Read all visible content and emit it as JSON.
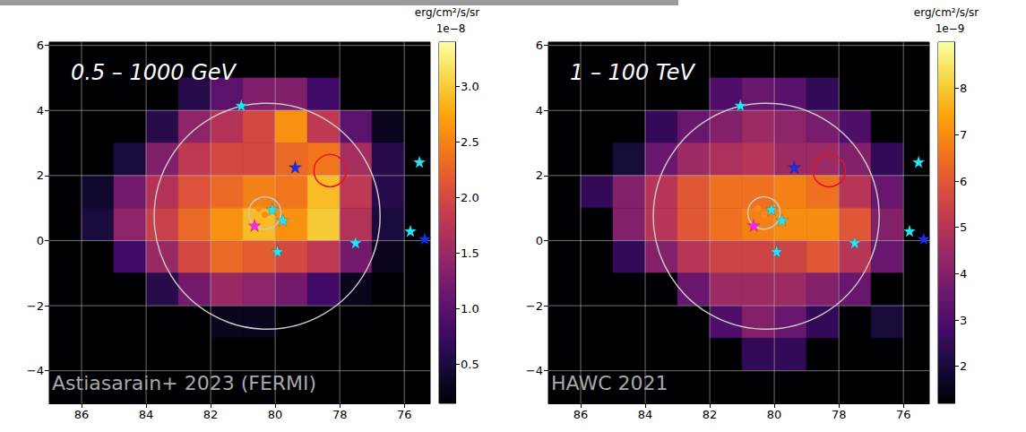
{
  "chart_data": [
    {
      "type": "heatmap",
      "title": "0.5 – 1000 GeV",
      "annotation": "Astiasarain+ 2023 (FERMI)",
      "grid": true,
      "xlim": [
        87,
        75.2
      ],
      "xticks": [
        86,
        84,
        82,
        80,
        78,
        76
      ],
      "ylim": [
        -5,
        6.1
      ],
      "yticks": [
        {
          "value": -4,
          "label": "−4"
        },
        {
          "value": -2,
          "label": "−2"
        },
        0,
        2,
        4,
        6
      ],
      "cells": {
        "x": [
          86.5,
          85.5,
          84.5,
          83.5,
          82.5,
          81.5,
          80.5,
          79.5,
          78.5,
          77.5,
          76.5,
          75.5
        ],
        "y": [
          5.5,
          4.5,
          3.5,
          2.5,
          1.5,
          0.5,
          -0.5,
          -1.5,
          -2.5,
          -3.5,
          -4.5
        ],
        "values": [
          [
            0.15,
            0.15,
            0.15,
            0.15,
            0.15,
            0.15,
            0.15,
            0.15,
            0.15,
            0.15,
            0.15,
            0.15
          ],
          [
            0.15,
            0.15,
            0.15,
            0.15,
            0.6,
            1.0,
            1.3,
            1.3,
            0.8,
            0.15,
            0.15,
            0.15
          ],
          [
            0.15,
            0.15,
            0.15,
            0.6,
            1.4,
            1.7,
            2.0,
            2.6,
            1.8,
            1.0,
            0.3,
            0.15
          ],
          [
            0.15,
            0.15,
            0.5,
            1.3,
            1.8,
            2.0,
            2.0,
            2.3,
            2.4,
            1.6,
            0.6,
            0.15
          ],
          [
            0.15,
            0.4,
            1.2,
            1.7,
            2.1,
            2.3,
            2.5,
            2.4,
            2.9,
            1.8,
            0.6,
            0.15
          ],
          [
            0.15,
            0.5,
            1.4,
            1.9,
            2.3,
            2.6,
            2.9,
            2.6,
            3.0,
            1.7,
            0.5,
            0.15
          ],
          [
            0.15,
            0.15,
            0.8,
            1.5,
            2.0,
            2.3,
            2.2,
            2.0,
            1.8,
            1.2,
            0.3,
            0.15
          ],
          [
            0.15,
            0.15,
            0.15,
            0.6,
            1.2,
            1.5,
            1.4,
            1.2,
            0.8,
            0.3,
            0.15,
            0.15
          ],
          [
            0.15,
            0.15,
            0.15,
            0.15,
            0.15,
            0.3,
            0.3,
            0.15,
            0.15,
            0.15,
            0.15,
            0.15
          ],
          [
            0.15,
            0.15,
            0.15,
            0.15,
            0.15,
            0.15,
            0.15,
            0.15,
            0.15,
            0.15,
            0.15,
            0.15
          ],
          [
            0.15,
            0.15,
            0.15,
            0.15,
            0.15,
            0.15,
            0.15,
            0.15,
            0.15,
            0.15,
            0.15,
            0.15
          ]
        ]
      },
      "colorbar": {
        "label": "erg/cm²/s/sr",
        "multiplier": "1e−8",
        "range": [
          0.15,
          3.4
        ],
        "ticks": [
          0.5,
          {
            "value": 1,
            "label": "1.0"
          },
          1.5,
          {
            "value": 2,
            "label": "2.0"
          },
          2.5,
          {
            "value": 3,
            "label": "3.0"
          }
        ]
      },
      "markers": [
        {
          "marker": "star",
          "color": "#27e3f2",
          "x": [
            81.05,
            80.09,
            79.76,
            79.93,
            77.51,
            75.53,
            75.81
          ],
          "y": [
            4.16,
            0.96,
            0.63,
            -0.33,
            -0.06,
            2.42,
            0.3
          ]
        },
        {
          "marker": "star",
          "color": "#1a2ee8",
          "x": [
            79.38,
            75.37
          ],
          "y": [
            2.26,
            0.06
          ]
        },
        {
          "marker": "star",
          "color": "#ff20f0",
          "x": [
            80.64
          ],
          "y": [
            0.47
          ]
        },
        {
          "marker": "circle",
          "color": "#ff8a1c",
          "x": [
            80.51,
            80.32
          ],
          "y": [
            0.99,
            0.8
          ]
        }
      ],
      "circles": [
        {
          "x": 80.25,
          "y": 0.75,
          "r": 3.5,
          "color": "#c8c8c8"
        },
        {
          "x": 80.32,
          "y": 0.85,
          "r": 0.5,
          "color": "#c8c8c8"
        },
        {
          "x": 78.3,
          "y": 2.15,
          "r": 0.5,
          "color": "#e8141c"
        }
      ]
    },
    {
      "type": "heatmap",
      "title": "1 – 100 TeV",
      "annotation": "HAWC 2021",
      "grid": true,
      "xlim": [
        87,
        75.2
      ],
      "xticks": [
        86,
        84,
        82,
        80,
        78,
        76
      ],
      "ylim": [
        -5,
        6.1
      ],
      "yticks": [
        {
          "value": -4,
          "label": "−4"
        },
        {
          "value": -2,
          "label": "−2"
        },
        0,
        2,
        4,
        6
      ],
      "cells": {
        "x": [
          86.5,
          85.5,
          84.5,
          83.5,
          82.5,
          81.5,
          80.5,
          79.5,
          78.5,
          77.5,
          76.5,
          75.5
        ],
        "y": [
          5.5,
          4.5,
          3.5,
          2.5,
          1.5,
          0.5,
          -0.5,
          -1.5,
          -2.5,
          -3.5,
          -4.5
        ],
        "values": [
          [
            1.2,
            1.2,
            1.2,
            1.2,
            1.2,
            1.2,
            1.2,
            1.2,
            1.2,
            1.2,
            1.2,
            1.2
          ],
          [
            1.2,
            1.2,
            1.2,
            1.2,
            1.2,
            3.0,
            3.5,
            3.2,
            2.5,
            1.2,
            1.2,
            1.2
          ],
          [
            1.2,
            1.2,
            1.2,
            2.5,
            3.5,
            4.0,
            4.5,
            4.2,
            3.8,
            3.0,
            1.2,
            1.2
          ],
          [
            1.2,
            1.2,
            2.0,
            3.5,
            4.5,
            4.8,
            5.0,
            4.5,
            4.5,
            4.0,
            2.5,
            1.2
          ],
          [
            1.2,
            2.5,
            4.0,
            5.0,
            6.0,
            6.5,
            6.5,
            6.8,
            6.5,
            5.0,
            3.5,
            1.2
          ],
          [
            1.2,
            1.2,
            4.0,
            5.0,
            6.0,
            6.5,
            6.8,
            7.0,
            7.0,
            6.0,
            4.0,
            1.2
          ],
          [
            1.2,
            1.2,
            2.5,
            4.0,
            5.0,
            5.5,
            5.5,
            5.5,
            6.0,
            5.0,
            3.5,
            1.2
          ],
          [
            1.2,
            1.2,
            1.2,
            1.2,
            3.5,
            4.5,
            4.5,
            4.5,
            4.0,
            3.5,
            1.2,
            1.2
          ],
          [
            1.2,
            1.2,
            1.2,
            1.2,
            1.2,
            3.0,
            4.0,
            3.5,
            2.5,
            1.2,
            2.0,
            1.2
          ],
          [
            1.2,
            1.2,
            1.2,
            1.2,
            1.2,
            1.2,
            2.5,
            2.5,
            1.2,
            1.2,
            1.2,
            1.2
          ],
          [
            1.2,
            1.2,
            1.2,
            1.2,
            1.2,
            1.2,
            1.2,
            1.2,
            1.2,
            1.2,
            1.2,
            1.2
          ]
        ]
      },
      "colorbar": {
        "label": "erg/cm²/s/sr",
        "multiplier": "1e−9",
        "range": [
          1.2,
          9.0
        ],
        "ticks": [
          2,
          3,
          4,
          5,
          6,
          7,
          8
        ]
      },
      "markers": [
        {
          "marker": "star",
          "color": "#27e3f2",
          "x": [
            81.05,
            80.09,
            79.76,
            79.93,
            77.51,
            75.53,
            75.81
          ],
          "y": [
            4.16,
            0.96,
            0.63,
            -0.33,
            -0.06,
            2.42,
            0.3
          ]
        },
        {
          "marker": "star",
          "color": "#1a2ee8",
          "x": [
            79.38,
            75.37
          ],
          "y": [
            2.26,
            0.06
          ]
        },
        {
          "marker": "star",
          "color": "#ff20f0",
          "x": [
            80.64
          ],
          "y": [
            0.47
          ]
        },
        {
          "marker": "circle",
          "color": "#ff8a1c",
          "x": [
            80.51,
            80.32
          ],
          "y": [
            0.99,
            0.8
          ]
        }
      ],
      "circles": [
        {
          "x": 80.25,
          "y": 0.75,
          "r": 3.5,
          "color": "#c8c8c8"
        },
        {
          "x": 80.32,
          "y": 0.85,
          "r": 0.5,
          "color": "#c8c8c8"
        },
        {
          "x": 78.3,
          "y": 2.15,
          "r": 0.5,
          "color": "#e8141c"
        }
      ]
    }
  ]
}
